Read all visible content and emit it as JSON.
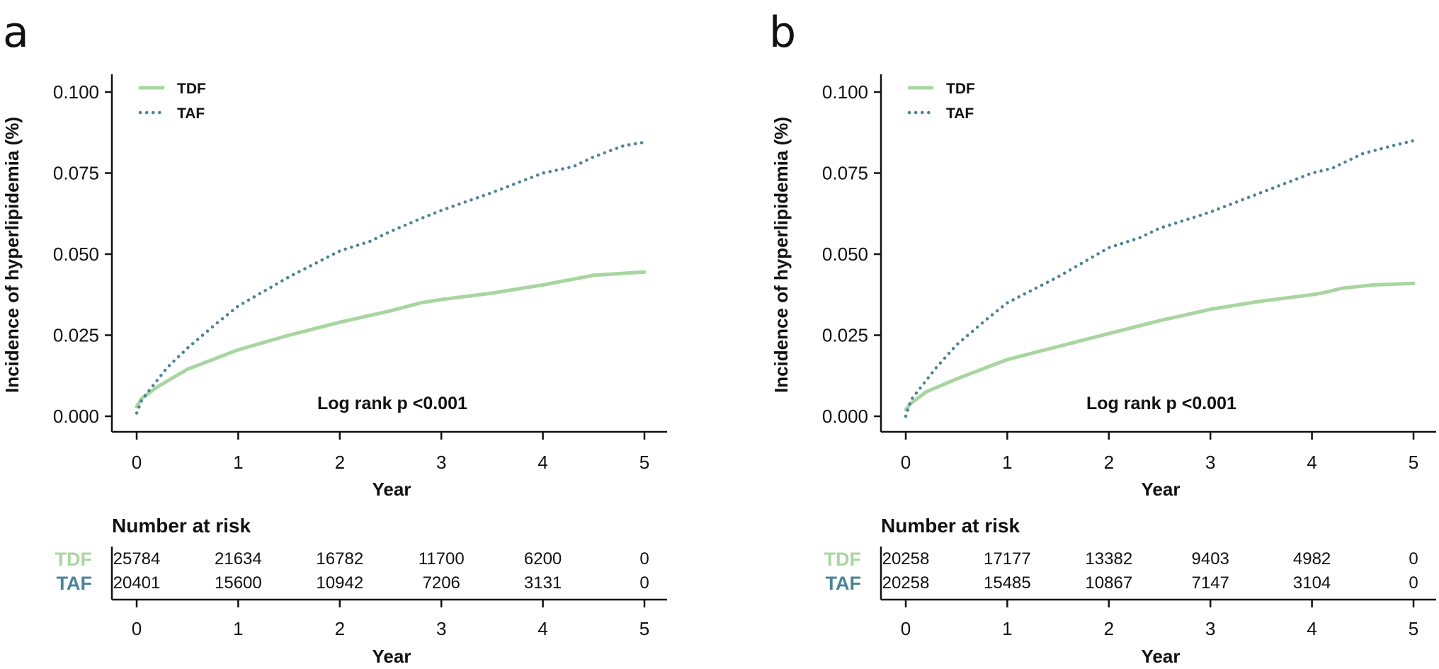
{
  "colors": {
    "tdf": "#a8d5a0",
    "taf": "#4c8396",
    "axis": "#111111"
  },
  "chart_data": [
    {
      "panel": "a",
      "type": "line",
      "title": "",
      "xlabel": "Year",
      "ylabel": "Incidence of hyperlipidemia (%)",
      "xlim": [
        0,
        5
      ],
      "ylim": [
        0,
        0.1
      ],
      "xticks": [
        "0",
        "1",
        "2",
        "3",
        "4",
        "5"
      ],
      "yticks": [
        "0.000",
        "0.025",
        "0.050",
        "0.075",
        "0.100"
      ],
      "legend_position": "top-left",
      "annotation": "Log rank  p <0.001",
      "series": [
        {
          "name": "TDF",
          "style": "solid",
          "x": [
            0,
            0.05,
            0.2,
            0.5,
            1.0,
            1.5,
            2.0,
            2.5,
            2.8,
            3.0,
            3.5,
            4.0,
            4.5,
            5.0
          ],
          "y": [
            0.003,
            0.0055,
            0.009,
            0.0145,
            0.0205,
            0.025,
            0.029,
            0.0325,
            0.035,
            0.036,
            0.038,
            0.0405,
            0.0435,
            0.0445
          ]
        },
        {
          "name": "TAF",
          "style": "dotted",
          "x": [
            0,
            0.05,
            0.15,
            0.3,
            0.5,
            0.8,
            1.0,
            1.5,
            2.0,
            2.3,
            2.5,
            2.8,
            3.0,
            3.5,
            4.0,
            4.3,
            4.5,
            4.8,
            5.0
          ],
          "y": [
            0.001,
            0.005,
            0.009,
            0.015,
            0.021,
            0.029,
            0.034,
            0.043,
            0.051,
            0.054,
            0.057,
            0.061,
            0.0635,
            0.069,
            0.075,
            0.077,
            0.08,
            0.0835,
            0.0845
          ]
        }
      ],
      "risk_table": {
        "title": "Number at risk",
        "xlabel": "Year",
        "groups": [
          {
            "name": "TDF",
            "values": [
              "25784",
              "21634",
              "16782",
              "11700",
              "6200",
              "0"
            ]
          },
          {
            "name": "TAF",
            "values": [
              "20401",
              "15600",
              "10942",
              "7206",
              "3131",
              "0"
            ]
          }
        ]
      }
    },
    {
      "panel": "b",
      "type": "line",
      "title": "",
      "xlabel": "Year",
      "ylabel": "Incidence of hyperlipidemia (%)",
      "xlim": [
        0,
        5
      ],
      "ylim": [
        0,
        0.1
      ],
      "xticks": [
        "0",
        "1",
        "2",
        "3",
        "4",
        "5"
      ],
      "yticks": [
        "0.000",
        "0.025",
        "0.050",
        "0.075",
        "0.100"
      ],
      "legend_position": "top-left",
      "annotation": "Log rank  p <0.001",
      "series": [
        {
          "name": "TDF",
          "style": "solid",
          "x": [
            0,
            0.05,
            0.2,
            0.5,
            1.0,
            1.5,
            2.0,
            2.5,
            3.0,
            3.5,
            4.0,
            4.1,
            4.3,
            4.6,
            5.0
          ],
          "y": [
            0.002,
            0.004,
            0.0075,
            0.0115,
            0.0175,
            0.0215,
            0.0255,
            0.0295,
            0.033,
            0.0355,
            0.0375,
            0.038,
            0.0395,
            0.0405,
            0.041
          ]
        },
        {
          "name": "TAF",
          "style": "dotted",
          "x": [
            0,
            0.05,
            0.15,
            0.3,
            0.5,
            0.8,
            1.0,
            1.5,
            2.0,
            2.3,
            2.5,
            3.0,
            3.5,
            4.0,
            4.2,
            4.5,
            4.8,
            5.0
          ],
          "y": [
            0,
            0.005,
            0.009,
            0.015,
            0.022,
            0.03,
            0.035,
            0.043,
            0.052,
            0.055,
            0.058,
            0.063,
            0.069,
            0.075,
            0.0765,
            0.081,
            0.0835,
            0.085
          ]
        }
      ],
      "risk_table": {
        "title": "Number at risk",
        "xlabel": "Year",
        "groups": [
          {
            "name": "TDF",
            "values": [
              "20258",
              "17177",
              "13382",
              "9403",
              "4982",
              "0"
            ]
          },
          {
            "name": "TAF",
            "values": [
              "20258",
              "15485",
              "10867",
              "7147",
              "3104",
              "0"
            ]
          }
        ]
      }
    }
  ]
}
